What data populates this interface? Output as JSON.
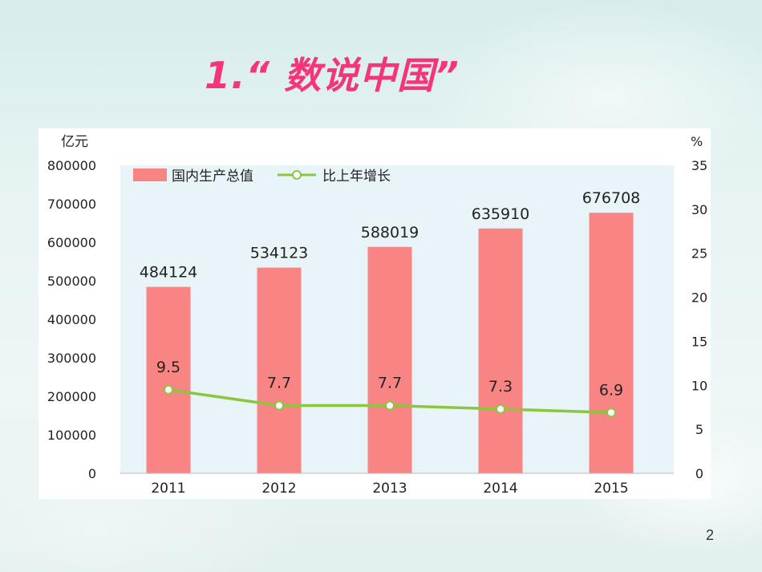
{
  "slide": {
    "title": "1.“ 数说中国”",
    "page_number": "2"
  },
  "chart_data": {
    "type": "bar",
    "categories": [
      "2011",
      "2012",
      "2013",
      "2014",
      "2015"
    ],
    "series": [
      {
        "name": "国内生产总值",
        "type": "bar",
        "axis": "left",
        "values": [
          484124,
          534123,
          588019,
          635910,
          676708
        ],
        "labels": [
          "484124",
          "534123",
          "588019",
          "635910",
          "676708"
        ],
        "color": "#f98484"
      },
      {
        "name": "比上年增长",
        "type": "line",
        "axis": "right",
        "values": [
          9.5,
          7.7,
          7.7,
          7.3,
          6.9
        ],
        "labels": [
          "9.5",
          "7.7",
          "7.7",
          "7.3",
          "6.9"
        ],
        "color": "#8cc63f"
      }
    ],
    "ylabel_left": "亿元",
    "ylabel_right": "%",
    "ylim_left": [
      0,
      800000
    ],
    "ylim_right": [
      0,
      35
    ],
    "yticks_left": [
      "0",
      "100000",
      "200000",
      "300000",
      "400000",
      "500000",
      "600000",
      "700000",
      "800000"
    ],
    "yticks_right": [
      "0",
      "5",
      "10",
      "15",
      "20",
      "25",
      "30",
      "35"
    ],
    "legend_position": "top-left",
    "grid": false,
    "plot_background": "#e8f4f8"
  }
}
